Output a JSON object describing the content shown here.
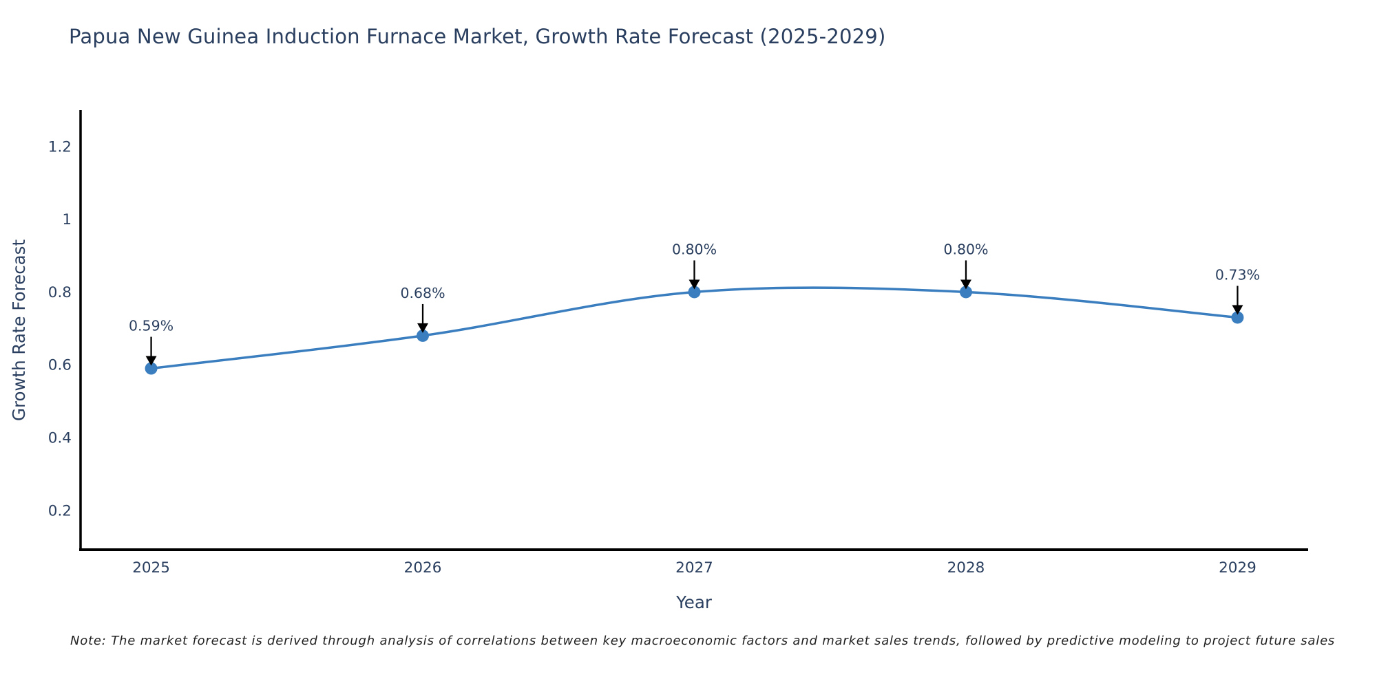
{
  "chart_data": {
    "type": "line",
    "title": "Papua New Guinea Induction Furnace Market, Growth Rate Forecast (2025-2029)",
    "xlabel": "Year",
    "ylabel": "Growth Rate Forecast",
    "x": [
      2025,
      2026,
      2027,
      2028,
      2029
    ],
    "values": [
      0.59,
      0.68,
      0.8,
      0.8,
      0.73
    ],
    "point_labels": [
      "0.59%",
      "0.68%",
      "0.80%",
      "0.80%",
      "0.73%"
    ],
    "xtick_labels": [
      "2025",
      "2026",
      "2027",
      "2028",
      "2029"
    ],
    "ytick_values": [
      0.2,
      0.4,
      0.6,
      0.8,
      1.0,
      1.2
    ],
    "ytick_labels": [
      "0.2",
      "0.4",
      "0.6",
      "0.8",
      "1",
      "1.2"
    ],
    "xlim": [
      2024.74,
      2029.26
    ],
    "ylim": [
      0.09,
      1.3
    ],
    "line_shape": "spline",
    "grid": false,
    "legend": "none",
    "annotation_style": "value label with downward arrow above each data point",
    "note": "Note: The market forecast is derived through analysis of correlations between key macroeconomic factors and market sales trends, followed by predictive modeling to project future sales",
    "colors": {
      "line": "#3a7ebf",
      "marker": "#3a7ebf",
      "axis": "#000000",
      "text": "#2a3f5f",
      "arrow": "#000000",
      "background": "#ffffff"
    }
  }
}
